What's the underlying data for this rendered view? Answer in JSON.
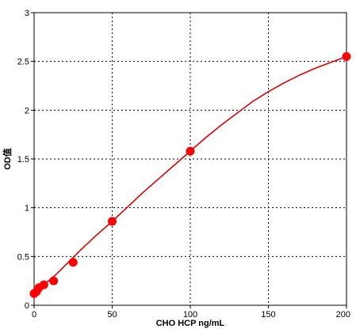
{
  "chart_data": {
    "type": "scatter",
    "title": "",
    "xlabel": "CHO HCP ng/mL",
    "ylabel": "OD值",
    "xlim": [
      0,
      200
    ],
    "ylim": [
      0,
      3
    ],
    "x_ticks": [
      "0",
      "50",
      "100",
      "150",
      "200"
    ],
    "y_ticks": [
      "0",
      "0.5",
      "1",
      "1.5",
      "2",
      "2.5",
      "3"
    ],
    "grid": true,
    "series": [
      {
        "x": [
          0,
          1.56,
          3.13,
          6.25,
          12.5,
          25,
          50,
          100,
          200
        ],
        "y": [
          0.12,
          0.14,
          0.18,
          0.21,
          0.25,
          0.44,
          0.86,
          1.58,
          2.55
        ]
      }
    ],
    "fit_curve": {
      "x": [
        0,
        1,
        3,
        6,
        10,
        15,
        20,
        30,
        40,
        50,
        60,
        70,
        80,
        90,
        100,
        110,
        120,
        130,
        140,
        150,
        160,
        170,
        180,
        190,
        200
      ],
      "y": [
        0.12,
        0.14,
        0.17,
        0.21,
        0.26,
        0.33,
        0.41,
        0.57,
        0.72,
        0.86,
        1.01,
        1.16,
        1.3,
        1.44,
        1.58,
        1.72,
        1.85,
        1.97,
        2.09,
        2.19,
        2.28,
        2.36,
        2.43,
        2.49,
        2.55
      ]
    },
    "colors": {
      "series": "#ff0000",
      "fit_line": "#dd0000",
      "grid": "#000000",
      "axis": "#000000"
    }
  }
}
